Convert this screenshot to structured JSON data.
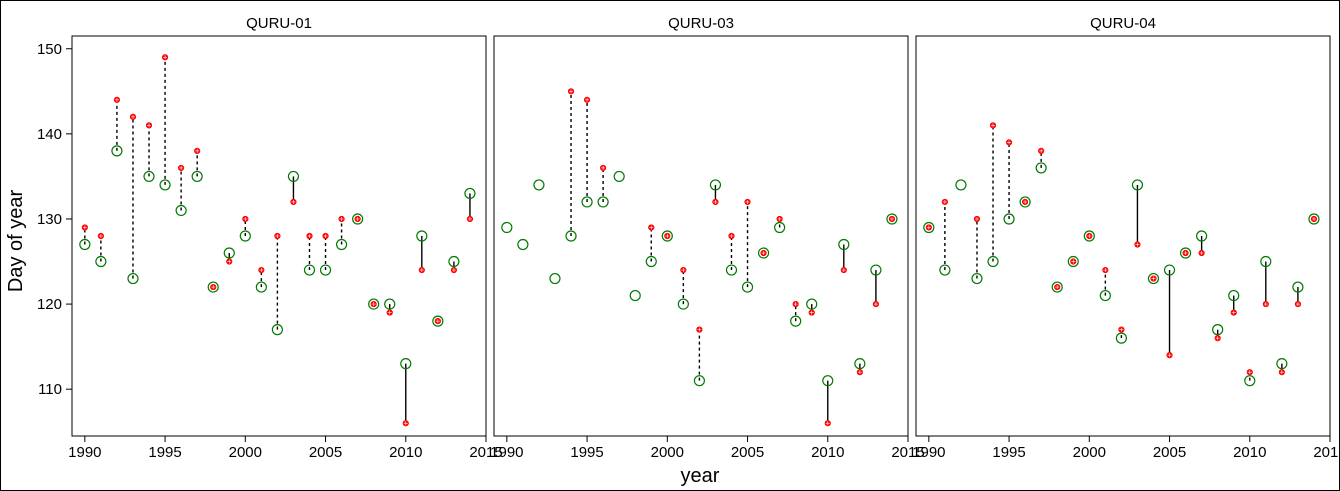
{
  "colors": {
    "predicted": "#ff0000",
    "observed": "#007a00",
    "axis": "#000000"
  },
  "chart_data": {
    "type": "scatter",
    "ylabel": "Day of year",
    "xlabel": "year",
    "xlim": [
      1989.2,
      2015
    ],
    "ylim": [
      104.5,
      151.5
    ],
    "x_ticks": [
      1990,
      1995,
      2000,
      2005,
      2010,
      2015
    ],
    "y_ticks": [
      110,
      120,
      130,
      140,
      150
    ],
    "grid": false,
    "legend": "none",
    "panels": [
      {
        "title": "QURU-01",
        "points": [
          {
            "year": 1990,
            "observed": 127,
            "predicted": 129
          },
          {
            "year": 1991,
            "observed": 125,
            "predicted": 128
          },
          {
            "year": 1992,
            "observed": 138,
            "predicted": 144
          },
          {
            "year": 1993,
            "observed": 123,
            "predicted": 142
          },
          {
            "year": 1994,
            "observed": 135,
            "predicted": 141
          },
          {
            "year": 1995,
            "observed": 134,
            "predicted": 149
          },
          {
            "year": 1996,
            "observed": 131,
            "predicted": 136
          },
          {
            "year": 1997,
            "observed": 135,
            "predicted": 138
          },
          {
            "year": 1998,
            "observed": 122,
            "predicted": 122
          },
          {
            "year": 1999,
            "observed": 126,
            "predicted": 125
          },
          {
            "year": 2000,
            "observed": 128,
            "predicted": 130
          },
          {
            "year": 2001,
            "observed": 122,
            "predicted": 124
          },
          {
            "year": 2002,
            "observed": 117,
            "predicted": 128
          },
          {
            "year": 2003,
            "observed": 135,
            "predicted": 132
          },
          {
            "year": 2004,
            "observed": 124,
            "predicted": 128
          },
          {
            "year": 2005,
            "observed": 124,
            "predicted": 128
          },
          {
            "year": 2006,
            "observed": 127,
            "predicted": 130
          },
          {
            "year": 2007,
            "observed": 130,
            "predicted": 130
          },
          {
            "year": 2008,
            "observed": 120,
            "predicted": 120
          },
          {
            "year": 2009,
            "observed": 120,
            "predicted": 119
          },
          {
            "year": 2010,
            "observed": 113,
            "predicted": 106
          },
          {
            "year": 2011,
            "observed": 128,
            "predicted": 124
          },
          {
            "year": 2012,
            "observed": 118,
            "predicted": 118
          },
          {
            "year": 2013,
            "observed": 125,
            "predicted": 124
          },
          {
            "year": 2014,
            "observed": 133,
            "predicted": 130
          }
        ]
      },
      {
        "title": "QURU-03",
        "points": [
          {
            "year": 1990,
            "observed": 129,
            "predicted": null
          },
          {
            "year": 1991,
            "observed": 127,
            "predicted": null
          },
          {
            "year": 1992,
            "observed": 134,
            "predicted": null
          },
          {
            "year": 1993,
            "observed": 123,
            "predicted": null
          },
          {
            "year": 1994,
            "observed": 128,
            "predicted": 145
          },
          {
            "year": 1995,
            "observed": 132,
            "predicted": 144
          },
          {
            "year": 1996,
            "observed": 132,
            "predicted": 136
          },
          {
            "year": 1997,
            "observed": 135,
            "predicted": null
          },
          {
            "year": 1998,
            "observed": 121,
            "predicted": null
          },
          {
            "year": 1999,
            "observed": 125,
            "predicted": 129
          },
          {
            "year": 2000,
            "observed": 128,
            "predicted": 128
          },
          {
            "year": 2001,
            "observed": 120,
            "predicted": 124
          },
          {
            "year": 2002,
            "observed": 111,
            "predicted": 117
          },
          {
            "year": 2003,
            "observed": 134,
            "predicted": 132
          },
          {
            "year": 2004,
            "observed": 124,
            "predicted": 128
          },
          {
            "year": 2005,
            "observed": 122,
            "predicted": 132
          },
          {
            "year": 2006,
            "observed": 126,
            "predicted": 126
          },
          {
            "year": 2007,
            "observed": 129,
            "predicted": 130
          },
          {
            "year": 2008,
            "observed": 118,
            "predicted": 120
          },
          {
            "year": 2009,
            "observed": 120,
            "predicted": 119
          },
          {
            "year": 2010,
            "observed": 111,
            "predicted": 106
          },
          {
            "year": 2011,
            "observed": 127,
            "predicted": 124
          },
          {
            "year": 2012,
            "observed": 113,
            "predicted": 112
          },
          {
            "year": 2013,
            "observed": 124,
            "predicted": 120
          },
          {
            "year": 2014,
            "observed": 130,
            "predicted": 130
          }
        ]
      },
      {
        "title": "QURU-04",
        "points": [
          {
            "year": 1990,
            "observed": 129,
            "predicted": 129
          },
          {
            "year": 1991,
            "observed": 124,
            "predicted": 132
          },
          {
            "year": 1992,
            "observed": 134,
            "predicted": null
          },
          {
            "year": 1993,
            "observed": 123,
            "predicted": 130
          },
          {
            "year": 1994,
            "observed": 125,
            "predicted": 141
          },
          {
            "year": 1995,
            "observed": 130,
            "predicted": 139
          },
          {
            "year": 1996,
            "observed": 132,
            "predicted": 132
          },
          {
            "year": 1997,
            "observed": 136,
            "predicted": 138
          },
          {
            "year": 1998,
            "observed": 122,
            "predicted": 122
          },
          {
            "year": 1999,
            "observed": 125,
            "predicted": 125
          },
          {
            "year": 2000,
            "observed": 128,
            "predicted": 128
          },
          {
            "year": 2001,
            "observed": 121,
            "predicted": 124
          },
          {
            "year": 2002,
            "observed": 116,
            "predicted": 117
          },
          {
            "year": 2003,
            "observed": 134,
            "predicted": 127
          },
          {
            "year": 2004,
            "observed": 123,
            "predicted": 123
          },
          {
            "year": 2005,
            "observed": 124,
            "predicted": 114
          },
          {
            "year": 2006,
            "observed": 126,
            "predicted": 126
          },
          {
            "year": 2007,
            "observed": 128,
            "predicted": 126
          },
          {
            "year": 2008,
            "observed": 117,
            "predicted": 116
          },
          {
            "year": 2009,
            "observed": 121,
            "predicted": 119
          },
          {
            "year": 2010,
            "observed": 111,
            "predicted": 112
          },
          {
            "year": 2011,
            "observed": 125,
            "predicted": 120
          },
          {
            "year": 2012,
            "observed": 113,
            "predicted": 112
          },
          {
            "year": 2013,
            "observed": 122,
            "predicted": 120
          },
          {
            "year": 2014,
            "observed": 130,
            "predicted": 130
          }
        ]
      }
    ]
  }
}
